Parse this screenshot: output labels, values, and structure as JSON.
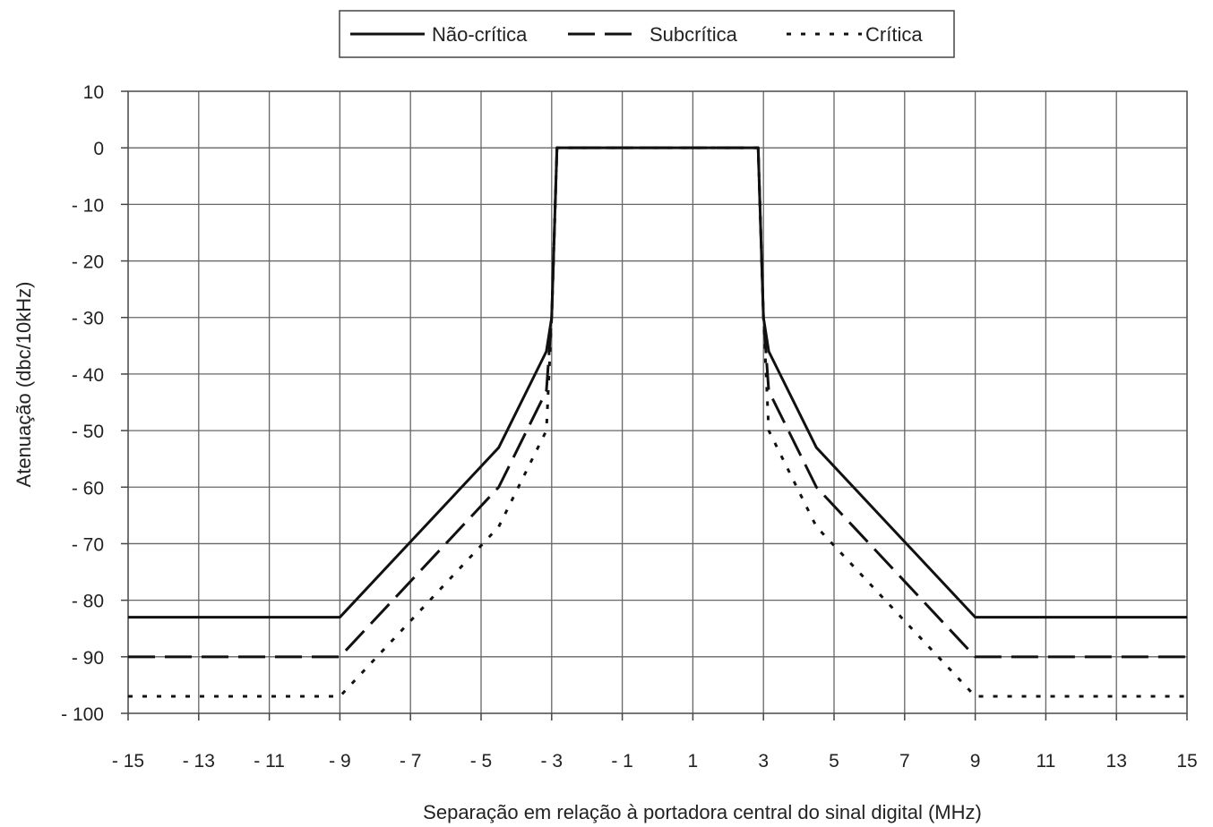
{
  "chart_data": {
    "type": "line",
    "title": "",
    "xlabel": "Separação em relação à portadora central do sinal digital (MHz)",
    "ylabel": "Atenuação (dbc/10kHz)",
    "xlim": [
      -15,
      15
    ],
    "ylim": [
      -100,
      10
    ],
    "x_ticks": [
      -15,
      -13,
      -11,
      -9,
      -7,
      -5,
      -3,
      -1,
      1,
      3,
      5,
      7,
      9,
      11,
      13,
      15
    ],
    "x_tick_labels": [
      "- 15",
      "- 13",
      "- 11",
      "- 9",
      "- 7",
      "- 5",
      "- 3",
      "- 1",
      "1",
      "3",
      "5",
      "7",
      "9",
      "11",
      "13",
      "15"
    ],
    "y_ticks": [
      10,
      0,
      -10,
      -20,
      -30,
      -40,
      -50,
      -60,
      -70,
      -80,
      -90,
      -100
    ],
    "y_tick_labels": [
      "10",
      "0",
      "- 10",
      "- 20",
      "- 30",
      "- 40",
      "- 50",
      "- 60",
      "- 70",
      "- 80",
      "- 90",
      "- 100"
    ],
    "grid": true,
    "legend_position": "top-center",
    "series": [
      {
        "name": "Não-crítica",
        "style": "solid",
        "color": "#111111",
        "points": [
          [
            -15,
            -83
          ],
          [
            -9,
            -83
          ],
          [
            -4.5,
            -53
          ],
          [
            -3.15,
            -36
          ],
          [
            -3,
            -30
          ],
          [
            -2.85,
            0
          ],
          [
            2.85,
            0
          ],
          [
            3,
            -30
          ],
          [
            3.15,
            -36
          ],
          [
            4.5,
            -53
          ],
          [
            9,
            -83
          ],
          [
            15,
            -83
          ]
        ]
      },
      {
        "name": "Subcrítica",
        "style": "dashed",
        "color": "#111111",
        "points": [
          [
            -15,
            -90
          ],
          [
            -9,
            -90
          ],
          [
            -4.5,
            -60
          ],
          [
            -3.15,
            -43
          ],
          [
            -3,
            -30
          ],
          [
            -2.85,
            0
          ],
          [
            2.85,
            0
          ],
          [
            3,
            -30
          ],
          [
            3.15,
            -43
          ],
          [
            4.5,
            -60
          ],
          [
            9,
            -90
          ],
          [
            15,
            -90
          ]
        ]
      },
      {
        "name": "Crítica",
        "style": "dotted",
        "color": "#111111",
        "points": [
          [
            -15,
            -97
          ],
          [
            -9,
            -97
          ],
          [
            -4.5,
            -67
          ],
          [
            -3.15,
            -50
          ],
          [
            -3,
            -30
          ],
          [
            -2.85,
            0
          ],
          [
            2.85,
            0
          ],
          [
            3,
            -30
          ],
          [
            3.15,
            -50
          ],
          [
            4.5,
            -67
          ],
          [
            9,
            -97
          ],
          [
            15,
            -97
          ]
        ]
      }
    ]
  }
}
